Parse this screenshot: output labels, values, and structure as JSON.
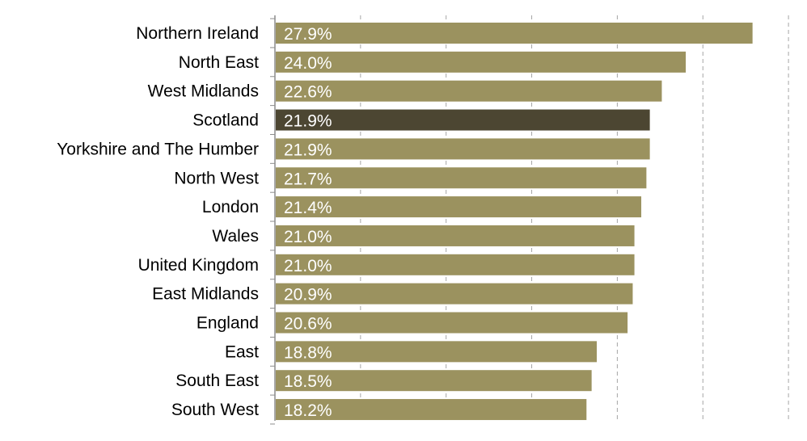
{
  "chart_data": {
    "type": "bar",
    "orientation": "horizontal",
    "title": "",
    "xlabel": "",
    "ylabel": "",
    "xlim": [
      0,
      30
    ],
    "grid": true,
    "categories": [
      "Northern Ireland",
      "North East",
      "West Midlands",
      "Scotland",
      "Yorkshire and The Humber",
      "North West",
      "London",
      "Wales",
      "United Kingdom",
      "East Midlands",
      "England",
      "East",
      "South East",
      "South West"
    ],
    "values": [
      27.9,
      24.0,
      22.6,
      21.9,
      21.9,
      21.7,
      21.4,
      21.0,
      21.0,
      20.9,
      20.6,
      18.8,
      18.5,
      18.2
    ],
    "labels": [
      "27.9%",
      "24.0%",
      "22.6%",
      "21.9%",
      "21.9%",
      "21.7%",
      "21.4%",
      "21.0%",
      "21.0%",
      "20.9%",
      "20.6%",
      "18.8%",
      "18.5%",
      "18.2%"
    ],
    "highlight_category": "Scotland",
    "colors": {
      "bar": "#9b925f",
      "highlight": "#4c4632",
      "grid": "#a6a6a6",
      "axis": "#8c8c8c"
    }
  }
}
